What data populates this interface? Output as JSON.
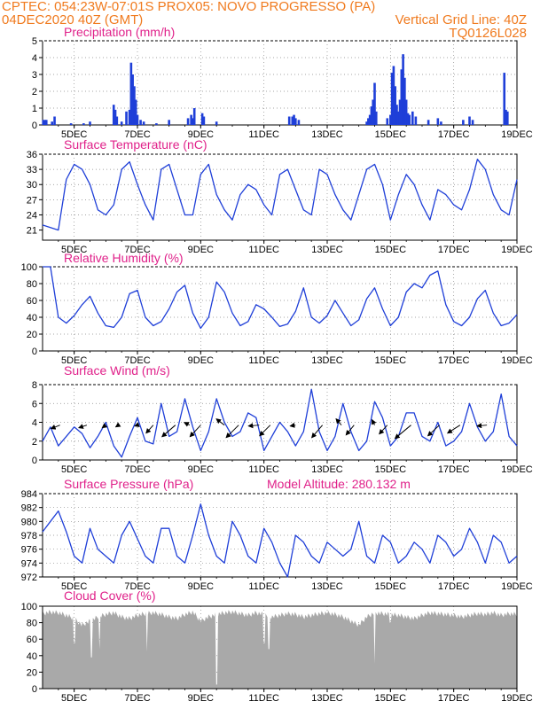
{
  "header": {
    "line1": "CPTEC:   054:23W-07:01S   PROX05: NOVO PROGRESSO (PA)",
    "line2_left": "04DEC2020 40Z (GMT)",
    "line2_right": "Vertical Grid Line: 40Z",
    "line3_right": "TQ0126L028"
  },
  "colors": {
    "header": "#f07a1e",
    "title": "#e0218a",
    "line": "#1f3fd8",
    "bar": "#1f3fd8",
    "cloud": "#a9a9a9",
    "grid": "#888888"
  },
  "x_tick_labels": [
    "5DEC",
    "7DEC",
    "9DEC",
    "11DEC",
    "13DEC",
    "15DEC",
    "17DEC",
    "19DEC"
  ],
  "chart_data": [
    {
      "type": "bar",
      "title": "Precipitation (mm/h)",
      "ylim": [
        0,
        5
      ],
      "yticks": [
        0,
        1,
        2,
        3,
        4,
        5
      ],
      "x_range_days": [
        0,
        15
      ],
      "series": [
        {
          "values": [
            [
              0.02,
              0.3
            ],
            [
              0.08,
              0.3
            ],
            [
              0.12,
              0.3
            ],
            [
              0.3,
              0.2
            ],
            [
              0.38,
              0.5
            ],
            [
              0.9,
              0.1
            ],
            [
              1.3,
              0.1
            ],
            [
              1.5,
              0.2
            ],
            [
              2.25,
              1.2
            ],
            [
              2.3,
              0.9
            ],
            [
              2.35,
              0.5
            ],
            [
              2.5,
              0.2
            ],
            [
              2.65,
              0.8
            ],
            [
              2.75,
              0.9
            ],
            [
              2.8,
              3.7
            ],
            [
              2.85,
              3.0
            ],
            [
              2.9,
              2.3
            ],
            [
              2.95,
              1.5
            ],
            [
              3.0,
              0.6
            ],
            [
              3.1,
              0.3
            ],
            [
              3.2,
              0.2
            ],
            [
              3.6,
              0.1
            ],
            [
              4.0,
              0.3
            ],
            [
              4.6,
              0.4
            ],
            [
              4.7,
              0.6
            ],
            [
              4.75,
              0.4
            ],
            [
              4.8,
              1.0
            ],
            [
              5.05,
              0.7
            ],
            [
              5.1,
              0.5
            ],
            [
              5.5,
              0.2
            ],
            [
              7.8,
              0.5
            ],
            [
              7.9,
              0.5
            ],
            [
              7.95,
              0.6
            ],
            [
              8.0,
              0.4
            ],
            [
              8.1,
              0.3
            ],
            [
              10.25,
              0.2
            ],
            [
              10.3,
              0.4
            ],
            [
              10.35,
              0.6
            ],
            [
              10.4,
              1.1
            ],
            [
              10.45,
              1.5
            ],
            [
              10.5,
              2.5
            ],
            [
              10.55,
              0.8
            ],
            [
              10.9,
              0.4
            ],
            [
              11.0,
              0.6
            ],
            [
              11.05,
              3.1
            ],
            [
              11.1,
              3.5
            ],
            [
              11.15,
              2.3
            ],
            [
              11.2,
              1.2
            ],
            [
              11.25,
              0.8
            ],
            [
              11.3,
              1.5
            ],
            [
              11.35,
              3.3
            ],
            [
              11.4,
              4.2
            ],
            [
              11.45,
              2.8
            ],
            [
              11.5,
              1.5
            ],
            [
              11.55,
              0.7
            ],
            [
              11.6,
              0.6
            ],
            [
              11.7,
              0.8
            ],
            [
              11.8,
              0.5
            ],
            [
              12.2,
              0.3
            ],
            [
              12.5,
              0.4
            ],
            [
              12.6,
              0.2
            ],
            [
              13.3,
              0.3
            ],
            [
              13.5,
              0.5
            ],
            [
              13.6,
              0.3
            ],
            [
              14.6,
              3.1
            ],
            [
              14.65,
              0.9
            ],
            [
              14.7,
              0.8
            ]
          ]
        }
      ]
    },
    {
      "type": "line",
      "title": "Surface Temperature (nC)",
      "ylim": [
        19,
        36
      ],
      "yticks": [
        21,
        24,
        27,
        30,
        33,
        36
      ],
      "x": [
        0,
        0.25,
        0.5,
        0.75,
        1,
        1.25,
        1.5,
        1.75,
        2,
        2.25,
        2.5,
        2.75,
        3,
        3.25,
        3.5,
        3.75,
        4,
        4.25,
        4.5,
        4.75,
        5,
        5.25,
        5.5,
        5.75,
        6,
        6.25,
        6.5,
        6.75,
        7,
        7.25,
        7.5,
        7.75,
        8,
        8.25,
        8.5,
        8.75,
        9,
        9.25,
        9.5,
        9.75,
        10,
        10.25,
        10.5,
        10.75,
        11,
        11.25,
        11.5,
        11.75,
        12,
        12.25,
        12.5,
        12.75,
        13,
        13.25,
        13.5,
        13.75,
        14,
        14.25,
        14.5,
        14.75,
        15
      ],
      "series": [
        {
          "values": [
            22,
            21.5,
            21,
            31,
            34,
            33,
            30,
            25,
            24,
            26,
            33,
            34.5,
            30,
            26,
            23,
            33,
            34,
            29,
            24,
            24,
            32,
            34,
            28,
            25,
            23,
            28,
            30,
            29,
            26,
            24,
            32,
            33,
            29,
            25,
            24,
            33,
            32,
            28,
            25,
            23,
            28,
            33,
            34,
            30,
            23,
            28,
            32,
            30,
            26,
            23,
            29,
            28,
            26,
            25,
            29,
            35,
            33,
            28,
            25,
            24,
            31
          ]
        }
      ]
    },
    {
      "type": "line",
      "title": "Relative Humidity (%)",
      "ylim": [
        0,
        100
      ],
      "yticks": [
        0,
        20,
        40,
        60,
        80,
        100
      ],
      "x": [
        0,
        0.25,
        0.5,
        0.75,
        1,
        1.25,
        1.5,
        1.75,
        2,
        2.25,
        2.5,
        2.75,
        3,
        3.25,
        3.5,
        3.75,
        4,
        4.25,
        4.5,
        4.75,
        5,
        5.25,
        5.5,
        5.75,
        6,
        6.25,
        6.5,
        6.75,
        7,
        7.25,
        7.5,
        7.75,
        8,
        8.25,
        8.5,
        8.75,
        9,
        9.25,
        9.5,
        9.75,
        10,
        10.25,
        10.5,
        10.75,
        11,
        11.25,
        11.5,
        11.75,
        12,
        12.25,
        12.5,
        12.75,
        13,
        13.25,
        13.5,
        13.75,
        14,
        14.25,
        14.5,
        14.75,
        15
      ],
      "series": [
        {
          "values": [
            100,
            100,
            40,
            33,
            42,
            55,
            65,
            45,
            30,
            28,
            40,
            68,
            72,
            40,
            30,
            35,
            50,
            70,
            78,
            45,
            27,
            40,
            82,
            70,
            45,
            30,
            35,
            55,
            50,
            40,
            29,
            32,
            47,
            75,
            40,
            33,
            42,
            60,
            45,
            30,
            37,
            62,
            75,
            50,
            30,
            40,
            70,
            80,
            75,
            90,
            95,
            55,
            35,
            30,
            40,
            62,
            72,
            45,
            30,
            33,
            43
          ]
        }
      ]
    },
    {
      "type": "line",
      "title": "Surface Wind (m/s)",
      "ylim": [
        0,
        8
      ],
      "yticks": [
        0,
        2,
        4,
        6,
        8
      ],
      "x": [
        0,
        0.25,
        0.5,
        0.75,
        1,
        1.25,
        1.5,
        1.75,
        2,
        2.25,
        2.5,
        2.75,
        3,
        3.25,
        3.5,
        3.75,
        4,
        4.25,
        4.5,
        4.75,
        5,
        5.25,
        5.5,
        5.75,
        6,
        6.25,
        6.5,
        6.75,
        7,
        7.25,
        7.5,
        7.75,
        8,
        8.25,
        8.5,
        8.75,
        9,
        9.25,
        9.5,
        9.75,
        10,
        10.25,
        10.5,
        10.75,
        11,
        11.25,
        11.5,
        11.75,
        12,
        12.25,
        12.5,
        12.75,
        13,
        13.25,
        13.5,
        13.75,
        14,
        14.25,
        14.5,
        14.75,
        15
      ],
      "series": [
        {
          "values": [
            2,
            3.5,
            1.5,
            2.5,
            3.5,
            2.8,
            1.3,
            2.5,
            4,
            1.5,
            0.3,
            2.5,
            4.5,
            2,
            1.7,
            6,
            2.5,
            3,
            6.5,
            3.5,
            1,
            3,
            6.5,
            4,
            2.5,
            3,
            5,
            4.5,
            1,
            2.5,
            4,
            3,
            1.5,
            3,
            7.5,
            3,
            1,
            2.5,
            6,
            3,
            1,
            2,
            6.2,
            4.5,
            1.5,
            2.5,
            5,
            5,
            2.5,
            2,
            4,
            1.5,
            2,
            3,
            6,
            3.5,
            2,
            3,
            7,
            2.5,
            1.5
          ]
        }
      ],
      "wind_arrows": [
        {
          "x": 0.55,
          "dx": -10,
          "dy": 4
        },
        {
          "x": 1.4,
          "dx": -9,
          "dy": 3
        },
        {
          "x": 2.0,
          "dx": -4,
          "dy": 3
        },
        {
          "x": 2.4,
          "dx": -3,
          "dy": 2
        },
        {
          "x": 3.0,
          "dx": -3,
          "dy": 1
        },
        {
          "x": 3.5,
          "dx": -8,
          "dy": 9
        },
        {
          "x": 4.2,
          "dx": -15,
          "dy": 13
        },
        {
          "x": 4.65,
          "dx": -6,
          "dy": -3
        },
        {
          "x": 5.0,
          "dx": -12,
          "dy": 13
        },
        {
          "x": 5.75,
          "dx": -9,
          "dy": -7
        },
        {
          "x": 6.2,
          "dx": -14,
          "dy": 14
        },
        {
          "x": 6.85,
          "dx": -12,
          "dy": 1
        },
        {
          "x": 7.2,
          "dx": -12,
          "dy": 12
        },
        {
          "x": 8.0,
          "dx": -6,
          "dy": 1
        },
        {
          "x": 8.85,
          "dx": -12,
          "dy": 14
        },
        {
          "x": 9.45,
          "dx": -6,
          "dy": -7
        },
        {
          "x": 9.85,
          "dx": -9,
          "dy": 11
        },
        {
          "x": 10.5,
          "dx": -3,
          "dy": -6
        },
        {
          "x": 10.9,
          "dx": -9,
          "dy": 10
        },
        {
          "x": 11.65,
          "dx": -18,
          "dy": 15
        },
        {
          "x": 12.55,
          "dx": -13,
          "dy": 12
        },
        {
          "x": 13.2,
          "dx": -14,
          "dy": 9
        },
        {
          "x": 14.05,
          "dx": -11,
          "dy": 1
        }
      ]
    },
    {
      "type": "line",
      "title": "Surface Pressure (hPa)",
      "annotation": "Model Altitude: 280.132 m",
      "ylim": [
        972,
        984
      ],
      "yticks": [
        972,
        974,
        976,
        978,
        980,
        982,
        984
      ],
      "x": [
        0,
        0.25,
        0.5,
        0.75,
        1,
        1.25,
        1.5,
        1.75,
        2,
        2.25,
        2.5,
        2.75,
        3,
        3.25,
        3.5,
        3.75,
        4,
        4.25,
        4.5,
        4.75,
        5,
        5.25,
        5.5,
        5.75,
        6,
        6.25,
        6.5,
        6.75,
        7,
        7.25,
        7.5,
        7.75,
        8,
        8.25,
        8.5,
        8.75,
        9,
        9.25,
        9.5,
        9.75,
        10,
        10.25,
        10.5,
        10.75,
        11,
        11.25,
        11.5,
        11.75,
        12,
        12.25,
        12.5,
        12.75,
        13,
        13.25,
        13.5,
        13.75,
        14,
        14.25,
        14.5,
        14.75,
        15
      ],
      "series": [
        {
          "values": [
            978.5,
            980,
            981.5,
            978.5,
            975,
            974,
            979,
            976,
            975,
            974,
            978,
            980,
            977.5,
            975,
            974,
            979,
            979,
            975,
            974,
            978,
            982.5,
            978,
            975,
            974,
            980,
            978,
            975,
            974,
            979,
            977,
            974,
            972,
            978,
            977,
            975,
            974,
            977,
            976,
            975,
            976,
            980,
            975,
            974,
            978,
            977,
            974,
            975,
            977,
            976,
            974,
            978,
            977,
            975,
            976,
            979,
            977,
            974,
            978,
            977,
            974,
            975
          ]
        }
      ]
    },
    {
      "type": "area",
      "title": "Cloud Cover (%)",
      "ylim": [
        0,
        100
      ],
      "yticks": [
        0,
        20,
        40,
        60,
        80,
        100
      ],
      "x": [
        0,
        0.25,
        0.5,
        0.75,
        1,
        1.25,
        1.5,
        1.75,
        2,
        2.25,
        2.5,
        2.75,
        3,
        3.25,
        3.5,
        3.75,
        4,
        4.25,
        4.5,
        4.75,
        5,
        5.25,
        5.5,
        5.75,
        6,
        6.25,
        6.5,
        6.75,
        7,
        7.25,
        7.5,
        7.75,
        8,
        8.25,
        8.5,
        8.75,
        9,
        9.25,
        9.5,
        9.75,
        10,
        10.25,
        10.5,
        10.75,
        11,
        11.25,
        11.5,
        11.75,
        12,
        12.25,
        12.5,
        12.75,
        13,
        13.25,
        13.5,
        13.75,
        14,
        14.25,
        14.5,
        14.75,
        15
      ],
      "series": [
        {
          "values": [
            94,
            96,
            95,
            92,
            88,
            80,
            85,
            90,
            93,
            95,
            90,
            88,
            92,
            94,
            95,
            93,
            90,
            88,
            93,
            96,
            85,
            90,
            93,
            95,
            96,
            94,
            92,
            95,
            93,
            90,
            92,
            94,
            93,
            90,
            92,
            94,
            95,
            93,
            90,
            85,
            80,
            90,
            95,
            94,
            93,
            92,
            90,
            88,
            92,
            95,
            94,
            93,
            92,
            90,
            92,
            94,
            93,
            95,
            92,
            94,
            93
          ]
        }
      ],
      "dips": [
        [
          1.55,
          38
        ],
        [
          1.0,
          55
        ],
        [
          1.8,
          48
        ],
        [
          3.3,
          45
        ],
        [
          5.5,
          5
        ],
        [
          7.0,
          55
        ],
        [
          7.15,
          48
        ],
        [
          11.0,
          80
        ],
        [
          10.5,
          30
        ]
      ]
    }
  ]
}
